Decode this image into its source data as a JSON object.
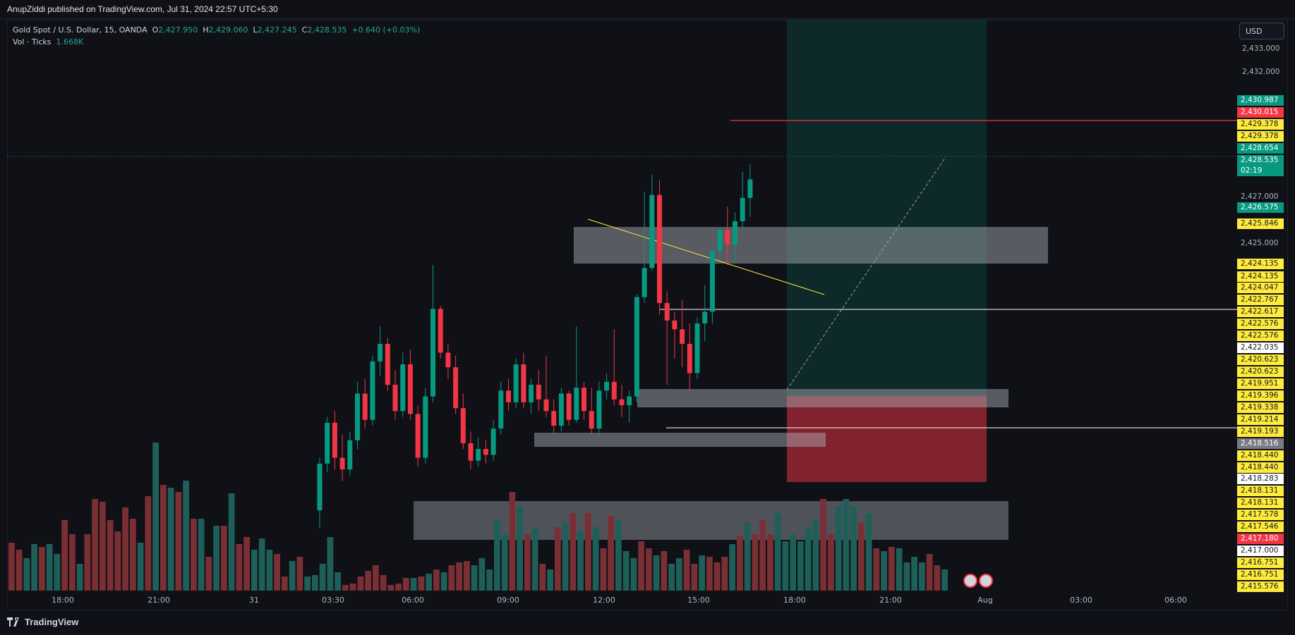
{
  "header": {
    "publish_line": "AnupZiddi published on TradingView.com, Jul 31, 2024 22:57 UTC+5:30"
  },
  "legend": {
    "symbol": "Gold Spot / U.S. Dollar, 15, OANDA",
    "o_label": "O",
    "o": "2,427.950",
    "h_label": "H",
    "h": "2,429.060",
    "l_label": "L",
    "l": "2,427.245",
    "c_label": "C",
    "c": "2,428.535",
    "change": "+0.640 (+0.03%)",
    "vol_label": "Vol · Ticks",
    "vol": "1.668K"
  },
  "currency_button": "USD",
  "price_axis": {
    "ticks": [
      "2,433.000",
      "2,432.000",
      "2,425.000"
    ],
    "ticks_partial": [
      "2,427.000"
    ],
    "labels": [
      {
        "text": "2,430.987",
        "bg": "#089981",
        "fg": "#ffffff"
      },
      {
        "text": "2,430.015",
        "bg": "#f23645",
        "fg": "#ffffff"
      },
      {
        "text": "2,429.378",
        "bg": "#ffeb3b",
        "fg": "#131722"
      },
      {
        "text": "2,429.378",
        "bg": "#ffeb3b",
        "fg": "#131722"
      },
      {
        "text": "2,428.654",
        "bg": "#089981",
        "fg": "#ffffff"
      },
      {
        "text": "2,428.535",
        "bg": "#089981",
        "fg": "#ffffff"
      },
      {
        "text": "02:19",
        "bg": "#089981",
        "fg": "#ffffff"
      },
      {
        "text": "2,427.000",
        "bg": "",
        "fg": "#b2b5be"
      },
      {
        "text": "2,426.575",
        "bg": "#089981",
        "fg": "#ffffff"
      },
      {
        "text": "2,425.846",
        "bg": "#ffeb3b",
        "fg": "#131722"
      },
      {
        "text": "2,425.000",
        "bg": "",
        "fg": "#b2b5be"
      },
      {
        "text": "2,424.135",
        "bg": "#ffeb3b",
        "fg": "#131722"
      },
      {
        "text": "2,424.135",
        "bg": "#ffeb3b",
        "fg": "#131722"
      },
      {
        "text": "2,424.047",
        "bg": "#ffeb3b",
        "fg": "#131722"
      },
      {
        "text": "2,422.767",
        "bg": "#ffeb3b",
        "fg": "#131722"
      },
      {
        "text": "2,422.617",
        "bg": "#ffeb3b",
        "fg": "#131722"
      },
      {
        "text": "2,422.576",
        "bg": "#ffeb3b",
        "fg": "#131722"
      },
      {
        "text": "2,422.576",
        "bg": "#ffeb3b",
        "fg": "#131722"
      },
      {
        "text": "2,422.035",
        "bg": "#ffffff",
        "fg": "#131722"
      },
      {
        "text": "2,420.623",
        "bg": "#ffeb3b",
        "fg": "#131722"
      },
      {
        "text": "2,420.623",
        "bg": "#ffeb3b",
        "fg": "#131722"
      },
      {
        "text": "2,419.951",
        "bg": "#ffeb3b",
        "fg": "#131722"
      },
      {
        "text": "2,419.396",
        "bg": "#ffeb3b",
        "fg": "#131722"
      },
      {
        "text": "2,419.338",
        "bg": "#ffeb3b",
        "fg": "#131722"
      },
      {
        "text": "2,419.214",
        "bg": "#ffeb3b",
        "fg": "#131722"
      },
      {
        "text": "2,419.193",
        "bg": "#ffeb3b",
        "fg": "#131722"
      },
      {
        "text": "2,418.516",
        "bg": "#787b86",
        "fg": "#ffffff"
      },
      {
        "text": "2,418.440",
        "bg": "#ffeb3b",
        "fg": "#131722"
      },
      {
        "text": "2,418.440",
        "bg": "#ffeb3b",
        "fg": "#131722"
      },
      {
        "text": "2,418.283",
        "bg": "#ffffff",
        "fg": "#131722"
      },
      {
        "text": "2,418.131",
        "bg": "#ffeb3b",
        "fg": "#131722"
      },
      {
        "text": "2,418.131",
        "bg": "#ffeb3b",
        "fg": "#131722"
      },
      {
        "text": "2,417.578",
        "bg": "#ffeb3b",
        "fg": "#131722"
      },
      {
        "text": "2,417.546",
        "bg": "#ffeb3b",
        "fg": "#131722"
      },
      {
        "text": "2,417.180",
        "bg": "#f23645",
        "fg": "#ffffff"
      },
      {
        "text": "2,417.000",
        "bg": "#ffffff",
        "fg": "#131722"
      },
      {
        "text": "2,416.751",
        "bg": "#ffeb3b",
        "fg": "#131722"
      },
      {
        "text": "2,416.751",
        "bg": "#ffeb3b",
        "fg": "#131722"
      },
      {
        "text": "2,415.576",
        "bg": "#ffeb3b",
        "fg": "#131722"
      }
    ]
  },
  "time_axis": [
    "18:00",
    "21:00",
    "31",
    "03:30",
    "06:00",
    "09:00",
    "12:00",
    "15:00",
    "18:00",
    "21:00",
    "Aug",
    "03:00",
    "06:00"
  ],
  "brand": "TradingView",
  "colors": {
    "up": "#089981",
    "down": "#f23645",
    "bg": "#131722",
    "vol_up": "#1e5f5a",
    "vol_down": "#7a2f34",
    "zone": "#b2b5be",
    "target_zone": "#089981",
    "stop_zone": "#f23645",
    "trendline": "#ffeb3b",
    "level_white": "#ffffff",
    "level_red": "#f23645"
  },
  "chart_data": {
    "type": "candlestick",
    "symbol": "Gold Spot / U.S. Dollar",
    "interval": "15",
    "ylim": [
      2414.5,
      2434
    ],
    "candles": [
      {
        "o": 2417.2,
        "h": 2419.0,
        "l": 2416.6,
        "c": 2418.8
      },
      {
        "o": 2418.8,
        "h": 2420.4,
        "l": 2418.5,
        "c": 2420.2
      },
      {
        "o": 2420.2,
        "h": 2420.6,
        "l": 2418.6,
        "c": 2419.0
      },
      {
        "o": 2419.0,
        "h": 2419.8,
        "l": 2418.2,
        "c": 2418.6
      },
      {
        "o": 2418.6,
        "h": 2419.9,
        "l": 2418.4,
        "c": 2419.6
      },
      {
        "o": 2419.6,
        "h": 2421.6,
        "l": 2419.3,
        "c": 2421.2
      },
      {
        "o": 2421.2,
        "h": 2421.7,
        "l": 2420.0,
        "c": 2420.3
      },
      {
        "o": 2420.3,
        "h": 2422.5,
        "l": 2420.1,
        "c": 2422.3
      },
      {
        "o": 2422.3,
        "h": 2423.5,
        "l": 2421.8,
        "c": 2422.9
      },
      {
        "o": 2422.9,
        "h": 2423.1,
        "l": 2421.3,
        "c": 2421.5
      },
      {
        "o": 2421.5,
        "h": 2422.0,
        "l": 2420.3,
        "c": 2420.6
      },
      {
        "o": 2420.6,
        "h": 2422.6,
        "l": 2420.4,
        "c": 2422.2
      },
      {
        "o": 2422.2,
        "h": 2422.7,
        "l": 2420.3,
        "c": 2420.5
      },
      {
        "o": 2420.5,
        "h": 2420.8,
        "l": 2418.7,
        "c": 2419.0
      },
      {
        "o": 2419.0,
        "h": 2421.4,
        "l": 2418.8,
        "c": 2421.1
      },
      {
        "o": 2421.1,
        "h": 2425.6,
        "l": 2420.9,
        "c": 2424.1
      },
      {
        "o": 2424.1,
        "h": 2424.2,
        "l": 2422.4,
        "c": 2422.6
      },
      {
        "o": 2422.6,
        "h": 2422.9,
        "l": 2421.7,
        "c": 2422.1
      },
      {
        "o": 2422.1,
        "h": 2422.5,
        "l": 2420.5,
        "c": 2420.7
      },
      {
        "o": 2420.7,
        "h": 2421.2,
        "l": 2419.3,
        "c": 2419.5
      },
      {
        "o": 2419.5,
        "h": 2419.9,
        "l": 2418.6,
        "c": 2418.9
      },
      {
        "o": 2418.9,
        "h": 2419.7,
        "l": 2418.7,
        "c": 2419.3
      },
      {
        "o": 2419.3,
        "h": 2419.6,
        "l": 2418.8,
        "c": 2419.1
      },
      {
        "o": 2419.1,
        "h": 2420.3,
        "l": 2418.9,
        "c": 2420.0
      },
      {
        "o": 2420.0,
        "h": 2421.6,
        "l": 2419.8,
        "c": 2421.3
      },
      {
        "o": 2421.3,
        "h": 2421.7,
        "l": 2420.6,
        "c": 2420.9
      },
      {
        "o": 2420.9,
        "h": 2422.4,
        "l": 2420.7,
        "c": 2422.2
      },
      {
        "o": 2422.2,
        "h": 2422.6,
        "l": 2420.7,
        "c": 2420.9
      },
      {
        "o": 2420.9,
        "h": 2421.7,
        "l": 2420.5,
        "c": 2421.5
      },
      {
        "o": 2421.5,
        "h": 2422.0,
        "l": 2420.6,
        "c": 2421.0
      },
      {
        "o": 2421.0,
        "h": 2422.5,
        "l": 2420.4,
        "c": 2420.6
      },
      {
        "o": 2420.6,
        "h": 2421.0,
        "l": 2419.8,
        "c": 2420.1
      },
      {
        "o": 2420.1,
        "h": 2421.4,
        "l": 2419.9,
        "c": 2421.2
      },
      {
        "o": 2421.2,
        "h": 2421.3,
        "l": 2420.1,
        "c": 2420.3
      },
      {
        "o": 2420.3,
        "h": 2423.5,
        "l": 2420.2,
        "c": 2421.4
      },
      {
        "o": 2421.4,
        "h": 2421.6,
        "l": 2420.3,
        "c": 2420.6
      },
      {
        "o": 2420.6,
        "h": 2421.4,
        "l": 2419.8,
        "c": 2420.0
      },
      {
        "o": 2420.0,
        "h": 2421.6,
        "l": 2419.7,
        "c": 2421.3
      },
      {
        "o": 2421.3,
        "h": 2421.9,
        "l": 2421.0,
        "c": 2421.6
      },
      {
        "o": 2421.6,
        "h": 2423.4,
        "l": 2420.8,
        "c": 2421.0
      },
      {
        "o": 2421.0,
        "h": 2421.5,
        "l": 2420.4,
        "c": 2420.8
      },
      {
        "o": 2420.8,
        "h": 2421.3,
        "l": 2420.2,
        "c": 2421.1
      },
      {
        "o": 2421.1,
        "h": 2424.6,
        "l": 2420.9,
        "c": 2424.5
      },
      {
        "o": 2424.5,
        "h": 2428.1,
        "l": 2424.3,
        "c": 2425.5
      },
      {
        "o": 2425.5,
        "h": 2428.7,
        "l": 2425.4,
        "c": 2428.0
      },
      {
        "o": 2428.0,
        "h": 2428.5,
        "l": 2423.9,
        "c": 2424.3
      },
      {
        "o": 2424.3,
        "h": 2424.7,
        "l": 2421.5,
        "c": 2423.7
      },
      {
        "o": 2423.7,
        "h": 2424.0,
        "l": 2422.4,
        "c": 2423.4
      },
      {
        "o": 2423.4,
        "h": 2424.4,
        "l": 2422.1,
        "c": 2422.9
      },
      {
        "o": 2422.9,
        "h": 2423.6,
        "l": 2421.3,
        "c": 2421.9
      },
      {
        "o": 2421.9,
        "h": 2423.8,
        "l": 2421.7,
        "c": 2423.6
      },
      {
        "o": 2423.6,
        "h": 2424.9,
        "l": 2423.0,
        "c": 2424.0
      },
      {
        "o": 2424.0,
        "h": 2426.1,
        "l": 2423.6,
        "c": 2426.1
      },
      {
        "o": 2426.1,
        "h": 2426.9,
        "l": 2425.8,
        "c": 2426.8
      },
      {
        "o": 2426.8,
        "h": 2427.6,
        "l": 2425.6,
        "c": 2426.3
      },
      {
        "o": 2426.3,
        "h": 2427.4,
        "l": 2425.7,
        "c": 2427.1
      },
      {
        "o": 2427.1,
        "h": 2428.8,
        "l": 2426.8,
        "c": 2427.9
      },
      {
        "o": 2427.9,
        "h": 2429.06,
        "l": 2427.245,
        "c": 2428.535
      }
    ]
  }
}
